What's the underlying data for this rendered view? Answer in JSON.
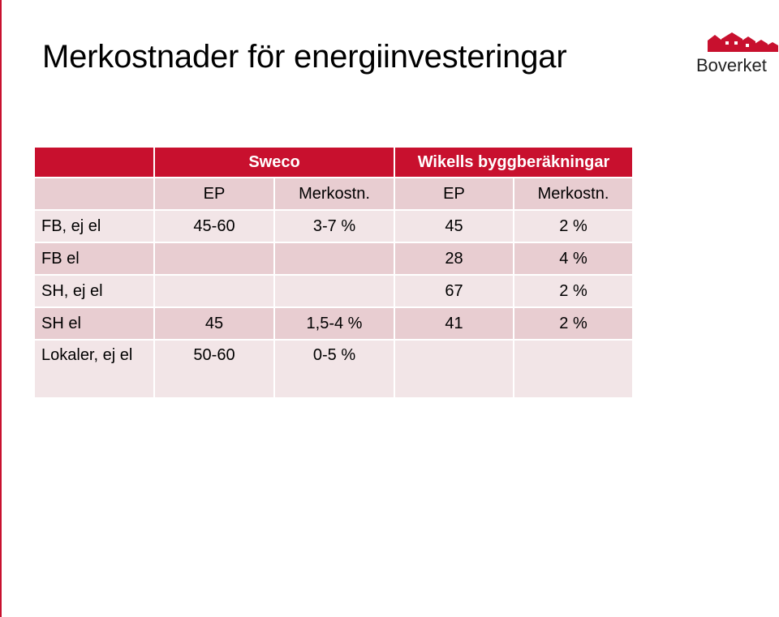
{
  "slide": {
    "title": "Merkostnader för energiinvesteringar",
    "brand": "Boverket",
    "accent_color": "#c8102e"
  },
  "table": {
    "group_headers": [
      "",
      "Sweco",
      "Wikells byggberäkningar"
    ],
    "sub_headers": [
      "",
      "EP",
      "Merkostn.",
      "EP",
      "Merkostn."
    ],
    "rows": [
      [
        "FB, ej el",
        "45-60",
        "3-7 %",
        "45",
        "2 %"
      ],
      [
        "FB el",
        "",
        "",
        "28",
        "4 %"
      ],
      [
        "SH, ej el",
        "",
        "",
        "67",
        "2 %"
      ],
      [
        "SH el",
        "45",
        "1,5-4 %",
        "41",
        "2 %"
      ],
      [
        "Lokaler, ej el",
        "50-60",
        "0-5 %",
        "",
        ""
      ]
    ]
  }
}
